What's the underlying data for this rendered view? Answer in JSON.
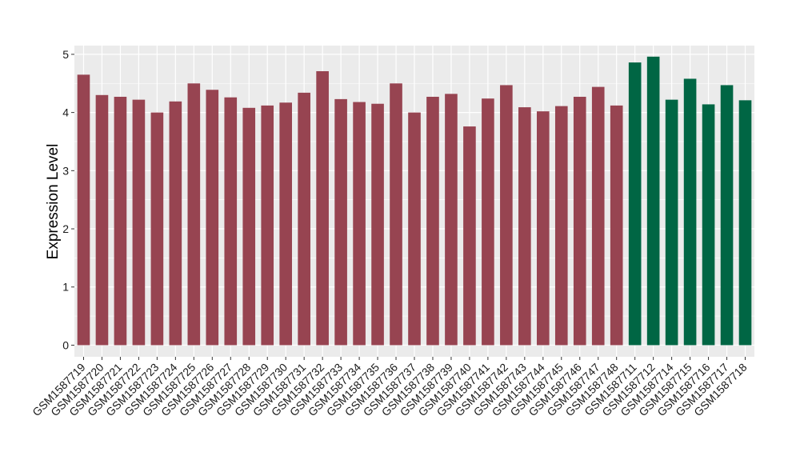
{
  "chart_data": {
    "type": "bar",
    "title": "",
    "xlabel": "",
    "ylabel": "Expression Level",
    "ylim": [
      -0.2,
      5.15
    ],
    "yticks": [
      0,
      1,
      2,
      3,
      4,
      5
    ],
    "grid": true,
    "panel_background": "#ebebeb",
    "grid_color": "#ffffff",
    "categories": [
      "GSM1587719",
      "GSM1587720",
      "GSM1587721",
      "GSM1587722",
      "GSM1587723",
      "GSM1587724",
      "GSM1587725",
      "GSM1587726",
      "GSM1587727",
      "GSM1587728",
      "GSM1587729",
      "GSM1587730",
      "GSM1587731",
      "GSM1587732",
      "GSM1587733",
      "GSM1587734",
      "GSM1587735",
      "GSM1587736",
      "GSM1587737",
      "GSM1587738",
      "GSM1587739",
      "GSM1587740",
      "GSM1587741",
      "GSM1587742",
      "GSM1587743",
      "GSM1587744",
      "GSM1587745",
      "GSM1587746",
      "GSM1587747",
      "GSM1587748",
      "GSM1587711",
      "GSM1587712",
      "GSM1587714",
      "GSM1587715",
      "GSM1587716",
      "GSM1587717",
      "GSM1587718"
    ],
    "values": [
      4.65,
      4.3,
      4.27,
      4.22,
      4.0,
      4.19,
      4.5,
      4.39,
      4.26,
      4.08,
      4.12,
      4.17,
      4.34,
      4.71,
      4.23,
      4.18,
      4.15,
      4.5,
      4.0,
      4.27,
      4.32,
      3.76,
      4.24,
      4.47,
      4.09,
      4.02,
      4.11,
      4.27,
      4.44,
      4.12,
      4.86,
      4.96,
      4.22,
      4.58,
      4.14,
      4.47,
      4.21
    ],
    "group_sizes": [
      30,
      7
    ],
    "group_colors": [
      "#974451",
      "#006644"
    ]
  }
}
